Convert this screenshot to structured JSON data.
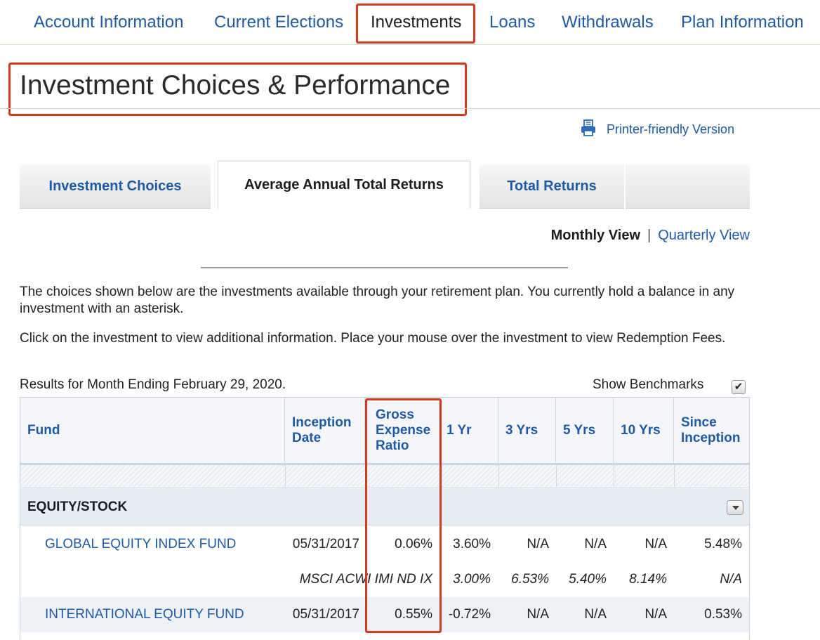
{
  "nav": {
    "items": [
      "Account Information",
      "Current Elections",
      "Investments",
      "Loans",
      "Withdrawals",
      "Plan Information"
    ],
    "active": "Investments"
  },
  "page_title": "Investment Choices & Performance",
  "printer_link": "Printer-friendly Version",
  "tabs": [
    "Investment Choices",
    "Average Annual Total Returns",
    "Total Returns"
  ],
  "active_tab": "Average Annual Total Returns",
  "view_toggle": {
    "current": "Monthly View",
    "separator": "|",
    "alternate": "Quarterly View"
  },
  "intro": {
    "paragraph1": "The choices shown below are the investments available through your retirement plan. You currently hold a balance in any investment with an asterisk.",
    "paragraph2": "Click on the investment to view additional information. Place your mouse over the investment to view Redemption Fees."
  },
  "results_label": "Results for Month Ending February 29, 2020.",
  "show_benchmarks": {
    "label": "Show Benchmarks",
    "checked": true,
    "check_glyph": "✔"
  },
  "table": {
    "headers": {
      "fund": "Fund",
      "inception": [
        "Inception",
        "Date"
      ],
      "expense": [
        "Gross",
        "Expense",
        "Ratio"
      ],
      "yr1": "1 Yr",
      "yr3": "3 Yrs",
      "yr5": "5 Yrs",
      "yr10": "10 Yrs",
      "since": [
        "Since",
        "Inception"
      ]
    },
    "category": "EQUITY/STOCK",
    "rows": [
      {
        "fund": "GLOBAL EQUITY INDEX FUND",
        "inception": "05/31/2017",
        "expense": "0.06%",
        "yr1": "3.60%",
        "yr3": "N/A",
        "yr5": "N/A",
        "yr10": "N/A",
        "since": "5.48%"
      },
      {
        "benchmark": "MSCI ACWI IMI ND IX",
        "yr1": "3.00%",
        "yr3": "6.53%",
        "yr5": "5.40%",
        "yr10": "8.14%",
        "since": "N/A"
      },
      {
        "fund": "INTERNATIONAL EQUITY FUND",
        "inception": "05/31/2017",
        "expense": "0.55%",
        "yr1": "-0.72%",
        "yr3": "N/A",
        "yr5": "N/A",
        "yr10": "N/A",
        "since": "0.53%"
      }
    ]
  },
  "colors": {
    "link": "#1f5aa6",
    "highlight": "#d23b22",
    "header_bg": "#f4f6f9",
    "category_bg": "#e6edf5"
  }
}
